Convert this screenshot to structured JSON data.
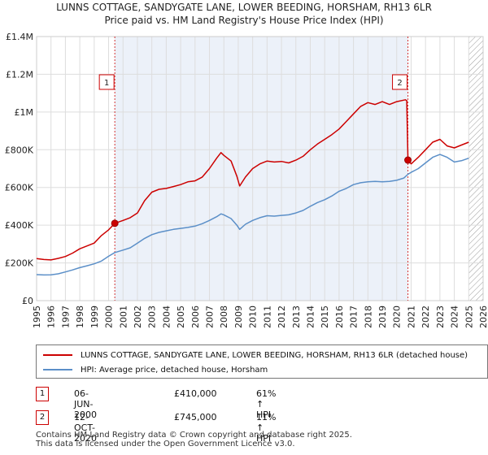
{
  "title_line1": "LUNNS COTTAGE, SANDYGATE LANE, LOWER BEEDING, HORSHAM, RH13 6LR",
  "title_line2": "Price paid vs. HM Land Registry's House Price Index (HPI)",
  "colors": {
    "property": "#cc0000",
    "hpi": "#5b8fc8",
    "shade": "#e4ebf6",
    "marker_border": "#cc0000"
  },
  "legend": {
    "property_label": "LUNNS COTTAGE, SANDYGATE LANE, LOWER BEEDING, HORSHAM, RH13 6LR (detached house)",
    "hpi_label": "HPI: Average price, detached house, Horsham"
  },
  "transactions": [
    {
      "num": "1",
      "date": "06-JUN-2000",
      "price": "£410,000",
      "hpi_change": "61% ↑ HPI"
    },
    {
      "num": "2",
      "date": "12-OCT-2020",
      "price": "£745,000",
      "hpi_change": "11% ↑ HPI"
    }
  ],
  "footer_line1": "Contains HM Land Registry data © Crown copyright and database right 2025.",
  "footer_line2": "This data is licensed under the Open Government Licence v3.0.",
  "chart_data": {
    "type": "line",
    "x_range": [
      1995,
      2026
    ],
    "ylim": [
      0,
      1400000
    ],
    "y_ticks": [
      {
        "value": 0,
        "label": "£0"
      },
      {
        "value": 200000,
        "label": "£200K"
      },
      {
        "value": 400000,
        "label": "£400K"
      },
      {
        "value": 600000,
        "label": "£600K"
      },
      {
        "value": 800000,
        "label": "£800K"
      },
      {
        "value": 1000000,
        "label": "£1M"
      },
      {
        "value": 1200000,
        "label": "£1.2M"
      },
      {
        "value": 1400000,
        "label": "£1.4M"
      }
    ],
    "x_ticks": [
      "1995",
      "1996",
      "1997",
      "1998",
      "1999",
      "2000",
      "2001",
      "2002",
      "2003",
      "2004",
      "2005",
      "2006",
      "2007",
      "2008",
      "2009",
      "2010",
      "2011",
      "2012",
      "2013",
      "2014",
      "2015",
      "2016",
      "2017",
      "2018",
      "2019",
      "2020",
      "2021",
      "2022",
      "2023",
      "2024",
      "2025",
      "2026"
    ],
    "grid": true,
    "sale_markers": [
      {
        "label": "1",
        "x": 2000.43,
        "y": 410000
      },
      {
        "label": "2",
        "x": 2020.78,
        "y": 745000
      }
    ],
    "shaded_periods": [
      [
        2000.43,
        2020.78
      ]
    ],
    "future_hatch_start": 2025.0,
    "series": [
      {
        "name": "LUNNS COTTAGE, SANDYGATE LANE, LOWER BEEDING, HORSHAM, RH13 6LR (detached house)",
        "color": "#cc0000",
        "points": [
          [
            1995.0,
            223000
          ],
          [
            1995.5,
            218000
          ],
          [
            1996.0,
            216000
          ],
          [
            1996.5,
            224000
          ],
          [
            1997.0,
            234000
          ],
          [
            1997.5,
            252000
          ],
          [
            1998.0,
            275000
          ],
          [
            1998.5,
            290000
          ],
          [
            1999.0,
            305000
          ],
          [
            1999.5,
            345000
          ],
          [
            2000.0,
            375000
          ],
          [
            2000.43,
            410000
          ],
          [
            2001.0,
            425000
          ],
          [
            2001.5,
            440000
          ],
          [
            2002.0,
            465000
          ],
          [
            2002.5,
            530000
          ],
          [
            2003.0,
            575000
          ],
          [
            2003.5,
            590000
          ],
          [
            2004.0,
            595000
          ],
          [
            2004.5,
            605000
          ],
          [
            2005.0,
            615000
          ],
          [
            2005.5,
            630000
          ],
          [
            2006.0,
            635000
          ],
          [
            2006.5,
            655000
          ],
          [
            2007.0,
            700000
          ],
          [
            2007.5,
            755000
          ],
          [
            2007.8,
            785000
          ],
          [
            2008.0,
            770000
          ],
          [
            2008.5,
            740000
          ],
          [
            2008.9,
            660000
          ],
          [
            2009.1,
            608000
          ],
          [
            2009.5,
            655000
          ],
          [
            2010.0,
            700000
          ],
          [
            2010.5,
            725000
          ],
          [
            2011.0,
            740000
          ],
          [
            2011.5,
            735000
          ],
          [
            2012.0,
            738000
          ],
          [
            2012.5,
            730000
          ],
          [
            2013.0,
            745000
          ],
          [
            2013.5,
            765000
          ],
          [
            2014.0,
            800000
          ],
          [
            2014.5,
            830000
          ],
          [
            2015.0,
            855000
          ],
          [
            2015.5,
            880000
          ],
          [
            2016.0,
            910000
          ],
          [
            2016.5,
            950000
          ],
          [
            2017.0,
            990000
          ],
          [
            2017.5,
            1030000
          ],
          [
            2018.0,
            1050000
          ],
          [
            2018.5,
            1040000
          ],
          [
            2019.0,
            1055000
          ],
          [
            2019.5,
            1040000
          ],
          [
            2020.0,
            1055000
          ],
          [
            2020.6,
            1065000
          ],
          [
            2020.7,
            1060000
          ],
          [
            2020.78,
            745000
          ],
          [
            2021.0,
            725000
          ],
          [
            2021.5,
            760000
          ],
          [
            2022.0,
            800000
          ],
          [
            2022.5,
            840000
          ],
          [
            2023.0,
            855000
          ],
          [
            2023.5,
            820000
          ],
          [
            2024.0,
            810000
          ],
          [
            2024.5,
            825000
          ],
          [
            2025.0,
            840000
          ]
        ]
      },
      {
        "name": "HPI: Average price, detached house, Horsham",
        "color": "#5b8fc8",
        "points": [
          [
            1995.0,
            138000
          ],
          [
            1995.5,
            136000
          ],
          [
            1996.0,
            137000
          ],
          [
            1996.5,
            142000
          ],
          [
            1997.0,
            152000
          ],
          [
            1997.5,
            163000
          ],
          [
            1998.0,
            175000
          ],
          [
            1998.5,
            185000
          ],
          [
            1999.0,
            195000
          ],
          [
            1999.5,
            210000
          ],
          [
            2000.0,
            235000
          ],
          [
            2000.43,
            255000
          ],
          [
            2001.0,
            268000
          ],
          [
            2001.5,
            280000
          ],
          [
            2002.0,
            305000
          ],
          [
            2002.5,
            330000
          ],
          [
            2003.0,
            350000
          ],
          [
            2003.5,
            362000
          ],
          [
            2004.0,
            370000
          ],
          [
            2004.5,
            378000
          ],
          [
            2005.0,
            383000
          ],
          [
            2005.5,
            388000
          ],
          [
            2006.0,
            395000
          ],
          [
            2006.5,
            408000
          ],
          [
            2007.0,
            425000
          ],
          [
            2007.5,
            445000
          ],
          [
            2007.8,
            460000
          ],
          [
            2008.0,
            455000
          ],
          [
            2008.5,
            435000
          ],
          [
            2008.9,
            400000
          ],
          [
            2009.1,
            378000
          ],
          [
            2009.5,
            405000
          ],
          [
            2010.0,
            425000
          ],
          [
            2010.5,
            440000
          ],
          [
            2011.0,
            450000
          ],
          [
            2011.5,
            448000
          ],
          [
            2012.0,
            452000
          ],
          [
            2012.5,
            455000
          ],
          [
            2013.0,
            465000
          ],
          [
            2013.5,
            478000
          ],
          [
            2014.0,
            500000
          ],
          [
            2014.5,
            520000
          ],
          [
            2015.0,
            535000
          ],
          [
            2015.5,
            555000
          ],
          [
            2016.0,
            580000
          ],
          [
            2016.5,
            595000
          ],
          [
            2017.0,
            615000
          ],
          [
            2017.5,
            625000
          ],
          [
            2018.0,
            630000
          ],
          [
            2018.5,
            632000
          ],
          [
            2019.0,
            630000
          ],
          [
            2019.5,
            632000
          ],
          [
            2020.0,
            638000
          ],
          [
            2020.5,
            650000
          ],
          [
            2020.78,
            670000
          ],
          [
            2021.0,
            680000
          ],
          [
            2021.5,
            700000
          ],
          [
            2022.0,
            730000
          ],
          [
            2022.5,
            760000
          ],
          [
            2023.0,
            775000
          ],
          [
            2023.5,
            760000
          ],
          [
            2024.0,
            735000
          ],
          [
            2024.5,
            742000
          ],
          [
            2025.0,
            755000
          ]
        ]
      }
    ]
  }
}
